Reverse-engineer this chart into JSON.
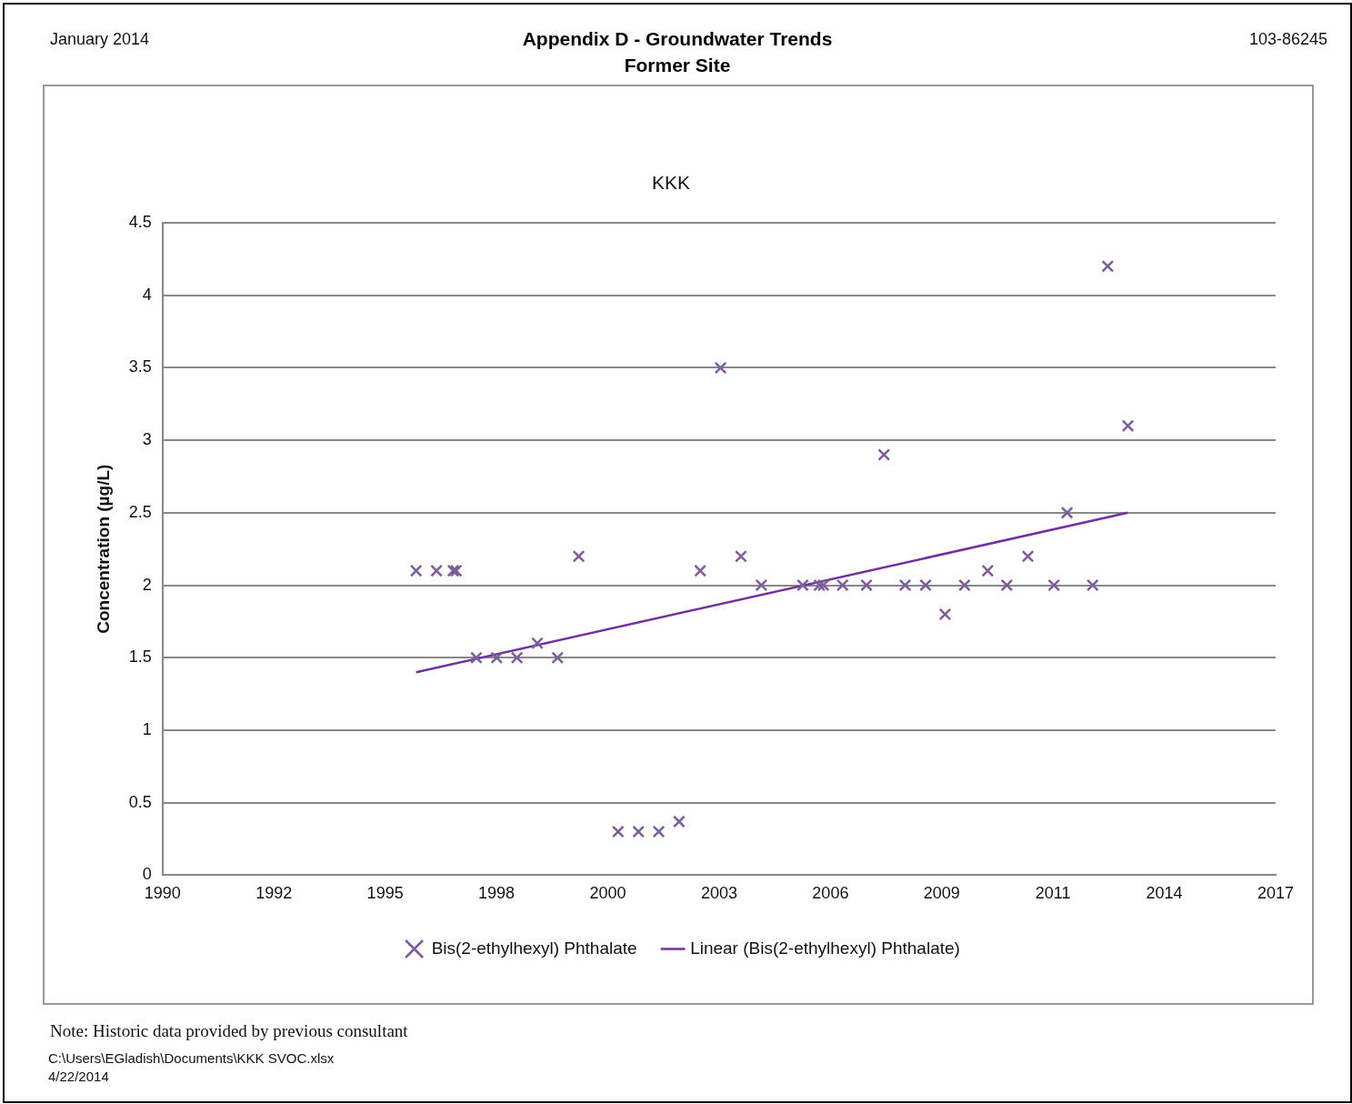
{
  "chart_data": {
    "type": "scatter",
    "title": "Appendix D - Groundwater Trends",
    "subtitle": "Former Site",
    "ylabel": "Concentration (µg/L)",
    "annotations": [
      "January 2014",
      "103-86245",
      "KKK",
      "Note: Historic data provided by previous consultant",
      "C:\\Users\\EGladish\\Documents\\KKK SVOC.xlsx",
      "4/22/2014"
    ],
    "xlim": [
      "1990-01-01",
      "2017-05-20"
    ],
    "xticks": [
      {
        "value": "1990-01-01",
        "label": "1990"
      },
      {
        "value": "1992-09-27",
        "label": "1992"
      },
      {
        "value": "1995-06-24",
        "label": "1995"
      },
      {
        "value": "1998-03-20",
        "label": "1998"
      },
      {
        "value": "2000-12-15",
        "label": "2000"
      },
      {
        "value": "2003-09-11",
        "label": "2003"
      },
      {
        "value": "2006-06-07",
        "label": "2006"
      },
      {
        "value": "2009-03-03",
        "label": "2009"
      },
      {
        "value": "2011-11-28",
        "label": "2011"
      },
      {
        "value": "2014-08-24",
        "label": "2014"
      },
      {
        "value": "2017-05-20",
        "label": "2017"
      }
    ],
    "ylim": [
      0,
      4.5
    ],
    "yticks": [
      0,
      0.5,
      1,
      1.5,
      2,
      2.5,
      3,
      3.5,
      4,
      4.5
    ],
    "grid": "y",
    "legend": "bottom",
    "marker": "cross",
    "series": [
      {
        "name": "Bis(2-ethylhexyl) Phthalate",
        "type": "scatter",
        "color": "#7b5c9c",
        "x": [
          "1996-03-28",
          "1996-09-27",
          "1997-02-24",
          "1997-03-22",
          "1997-09-20",
          "1998-03-22",
          "1998-09-20",
          "1999-03-22",
          "1999-09-20",
          "2000-03-28",
          "2001-03-17",
          "2001-09-16",
          "2002-03-17",
          "2002-09-16",
          "2003-03-25",
          "2003-09-24",
          "2004-03-25",
          "2004-09-24",
          "2005-10-01",
          "2006-02-28",
          "2006-04-05",
          "2006-09-24",
          "2007-04-27",
          "2007-10-01",
          "2008-04-08",
          "2008-10-09",
          "2009-04-02",
          "2009-09-24",
          "2010-04-20",
          "2010-10-09",
          "2011-04-16",
          "2011-12-06",
          "2012-04-02",
          "2012-11-18",
          "2013-04-02",
          "2013-10-01"
        ],
        "values": [
          2.1,
          2.1,
          2.1,
          2.1,
          1.5,
          1.5,
          1.5,
          1.6,
          1.5,
          2.2,
          0.3,
          0.3,
          0.3,
          0.37,
          2.1,
          3.5,
          2.2,
          2.0,
          2.0,
          2.0,
          2.0,
          2.0,
          2.0,
          2.9,
          2.0,
          2.0,
          1.8,
          2.0,
          2.1,
          2.0,
          2.2,
          2.0,
          2.5,
          2.0,
          4.2,
          3.1
        ]
      },
      {
        "name": "Linear (Bis(2-ethylhexyl) Phthalate)",
        "type": "line",
        "marker": "none",
        "color": "#7030a0",
        "x": [
          "1996-03-28",
          "2013-10-01"
        ],
        "values": [
          1.4,
          2.5
        ]
      }
    ]
  }
}
